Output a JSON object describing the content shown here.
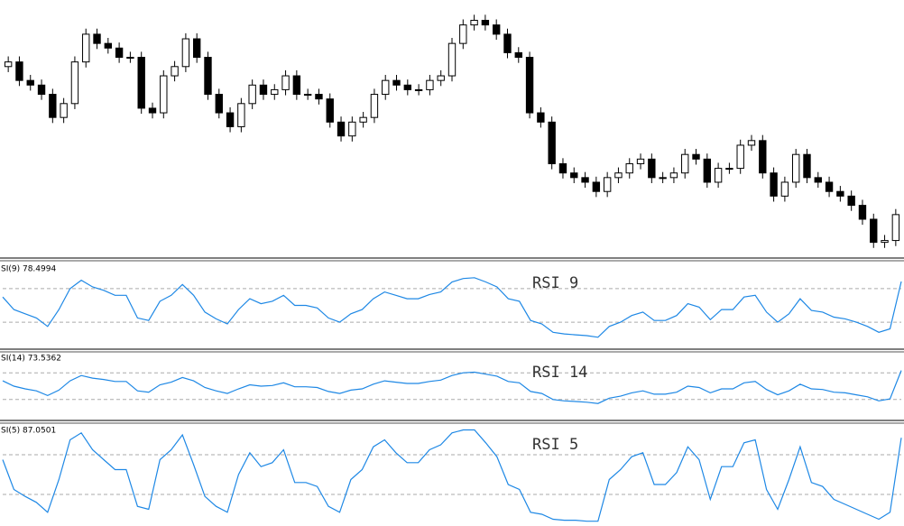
{
  "chart_data": [
    {
      "type": "candlestick",
      "ylim": [
        10,
        285
      ],
      "up_color": "#ffffff",
      "down_color": "#000000",
      "edge_color": "#000000",
      "open": [
        215,
        220,
        200,
        195,
        185,
        160,
        175,
        220,
        250,
        240,
        235,
        225,
        225,
        170,
        165,
        205,
        215,
        245,
        225,
        185,
        165,
        150,
        175,
        195,
        185,
        190,
        205,
        185,
        185,
        180,
        155,
        140,
        155,
        160,
        185,
        200,
        195,
        190,
        190,
        200,
        205,
        240,
        260,
        265,
        260,
        250,
        230,
        225,
        165,
        155,
        110,
        100,
        95,
        90,
        80,
        95,
        100,
        110,
        115,
        95,
        95,
        100,
        120,
        115,
        90,
        105,
        105,
        130,
        135,
        100,
        75,
        90,
        120,
        95,
        90,
        80,
        75,
        65,
        50,
        25,
        27
      ],
      "high": [
        226,
        226,
        206,
        201,
        191,
        181,
        226,
        256,
        256,
        246,
        241,
        231,
        231,
        176,
        211,
        221,
        251,
        251,
        231,
        191,
        171,
        181,
        201,
        201,
        196,
        211,
        211,
        191,
        191,
        186,
        161,
        161,
        166,
        191,
        206,
        206,
        201,
        196,
        206,
        211,
        246,
        266,
        271,
        271,
        266,
        256,
        236,
        231,
        171,
        161,
        116,
        106,
        101,
        96,
        101,
        106,
        116,
        121,
        121,
        101,
        106,
        126,
        126,
        121,
        111,
        111,
        136,
        141,
        141,
        106,
        96,
        126,
        126,
        101,
        96,
        86,
        81,
        71,
        56,
        33,
        61
      ],
      "low": [
        209,
        194,
        189,
        179,
        154,
        154,
        169,
        214,
        234,
        229,
        219,
        219,
        164,
        159,
        159,
        199,
        209,
        219,
        179,
        159,
        144,
        144,
        169,
        179,
        179,
        184,
        179,
        179,
        174,
        149,
        134,
        134,
        149,
        154,
        179,
        189,
        184,
        184,
        184,
        194,
        199,
        234,
        254,
        254,
        244,
        224,
        219,
        159,
        149,
        104,
        94,
        89,
        84,
        74,
        74,
        89,
        94,
        104,
        89,
        89,
        89,
        94,
        109,
        84,
        84,
        99,
        99,
        124,
        94,
        69,
        69,
        84,
        89,
        84,
        74,
        69,
        59,
        44,
        19,
        19,
        21
      ],
      "close": [
        220,
        200,
        195,
        185,
        160,
        175,
        220,
        250,
        240,
        235,
        225,
        225,
        170,
        165,
        205,
        215,
        245,
        225,
        185,
        165,
        150,
        175,
        195,
        185,
        190,
        205,
        185,
        185,
        180,
        155,
        140,
        155,
        160,
        185,
        200,
        195,
        190,
        190,
        200,
        205,
        240,
        260,
        265,
        260,
        250,
        230,
        225,
        165,
        155,
        110,
        100,
        95,
        90,
        80,
        95,
        100,
        110,
        115,
        95,
        95,
        100,
        120,
        115,
        90,
        105,
        105,
        130,
        135,
        100,
        75,
        90,
        120,
        95,
        90,
        80,
        75,
        65,
        50,
        25,
        27,
        55
      ]
    },
    {
      "type": "line",
      "title": "SI(9) 78.4994",
      "annotation": "RSI 9",
      "color": "#1e88e5",
      "ylim": [
        0,
        100
      ],
      "yticks": [
        30,
        70
      ],
      "grid": true,
      "values": [
        60,
        45,
        40,
        35,
        25,
        45,
        70,
        80,
        72,
        68,
        62,
        62,
        35,
        32,
        55,
        62,
        75,
        62,
        42,
        34,
        28,
        45,
        58,
        52,
        55,
        62,
        50,
        50,
        47,
        35,
        30,
        40,
        45,
        58,
        66,
        62,
        58,
        58,
        63,
        66,
        78,
        82,
        83,
        78,
        72,
        58,
        55,
        32,
        28,
        18,
        16,
        15,
        14,
        12,
        25,
        30,
        38,
        42,
        32,
        32,
        38,
        52,
        48,
        33,
        45,
        45,
        60,
        62,
        42,
        30,
        40,
        58,
        44,
        42,
        36,
        34,
        30,
        25,
        18,
        22,
        78.4994
      ]
    },
    {
      "type": "line",
      "title": "SI(14) 73.5362",
      "annotation": "RSI 14",
      "color": "#1e88e5",
      "ylim": [
        0,
        100
      ],
      "yticks": [
        30,
        70
      ],
      "grid": true,
      "values": [
        58,
        50,
        46,
        43,
        36,
        44,
        58,
        66,
        62,
        60,
        57,
        57,
        43,
        41,
        52,
        56,
        63,
        58,
        48,
        43,
        39,
        46,
        52,
        50,
        51,
        55,
        49,
        49,
        48,
        42,
        39,
        44,
        46,
        53,
        58,
        56,
        54,
        54,
        57,
        59,
        66,
        70,
        71,
        68,
        65,
        57,
        55,
        42,
        39,
        30,
        28,
        27,
        26,
        24,
        32,
        35,
        40,
        43,
        38,
        38,
        41,
        50,
        48,
        40,
        46,
        46,
        55,
        57,
        45,
        37,
        43,
        53,
        46,
        45,
        41,
        40,
        37,
        34,
        28,
        31,
        73.5362
      ]
    },
    {
      "type": "line",
      "title": "SI(5) 87.0501",
      "annotation": "RSI 5",
      "color": "#1e88e5",
      "ylim": [
        0,
        100
      ],
      "yticks": [
        30,
        70
      ],
      "grid": true,
      "values": [
        65,
        35,
        28,
        22,
        12,
        45,
        85,
        92,
        75,
        65,
        55,
        55,
        18,
        15,
        65,
        75,
        90,
        60,
        28,
        18,
        12,
        50,
        72,
        58,
        62,
        75,
        42,
        42,
        38,
        18,
        12,
        45,
        55,
        78,
        85,
        72,
        62,
        62,
        75,
        80,
        92,
        95,
        95,
        82,
        68,
        40,
        35,
        12,
        10,
        5,
        4,
        4,
        3,
        3,
        45,
        55,
        68,
        72,
        40,
        40,
        52,
        78,
        65,
        25,
        58,
        58,
        82,
        85,
        35,
        15,
        45,
        78,
        42,
        38,
        25,
        20,
        15,
        10,
        5,
        12,
        87.0501
      ]
    }
  ]
}
